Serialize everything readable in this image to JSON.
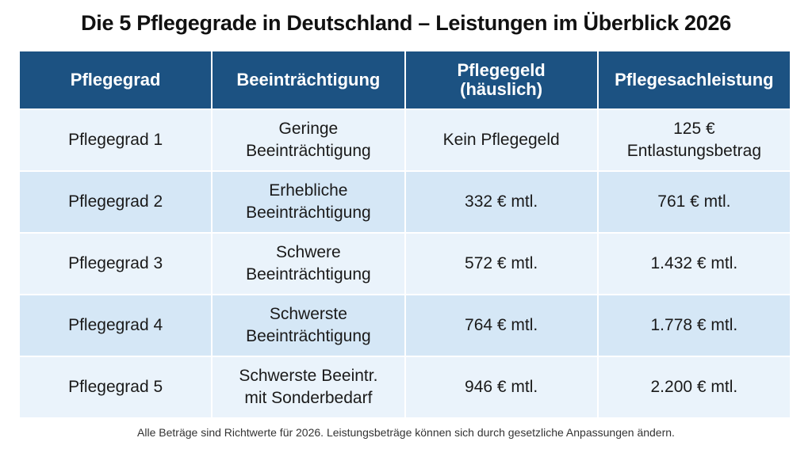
{
  "title": "Die 5 Pflegegrade in Deutschland – Leistungen im Überblick 2026",
  "table": {
    "headers": [
      "Pflegegrad",
      "Beeinträchtigung",
      "Pflegegeld (häuslich)",
      "Pflegesachleistung"
    ],
    "rows": [
      [
        "Pflegegrad 1",
        "Geringe Beeinträchtigung",
        "Kein Pflegegeld",
        "125 € Entlastungsbetrag"
      ],
      [
        "Pflegegrad 2",
        "Erhebliche Beeinträchtigung",
        "332 € mtl.",
        "761 € mtl."
      ],
      [
        "Pflegegrad 3",
        "Schwere Beeinträchtigung",
        "572 € mtl.",
        "1.432 € mtl."
      ],
      [
        "Pflegegrad 4",
        "Schwerste Beeinträchtigung",
        "764 € mtl.",
        "1.778 € mtl."
      ],
      [
        "Pflegegrad 5",
        "Schwerste Beeintr. mit Sonderbedarf",
        "946 € mtl.",
        "2.200 € mtl."
      ]
    ]
  },
  "footer": "Alle Beträge sind Richtwerte für 2026. Leistungsbeträge können sich durch gesetzliche Anpassungen ändern.",
  "colors": {
    "header": "#1c5282",
    "row_light": "#eaf3fb",
    "row_alt": "#d5e7f6"
  }
}
